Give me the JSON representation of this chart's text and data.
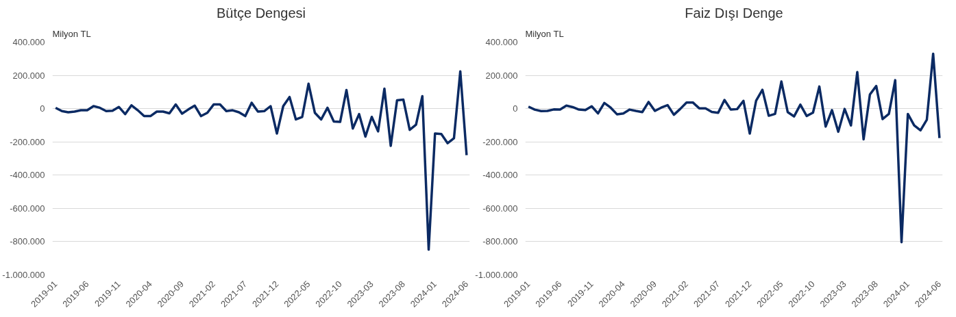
{
  "chart_data": [
    {
      "type": "line",
      "title": "Bütçe Dengesi",
      "ylabel": "Milyon TL",
      "categories": [
        "2019-01",
        null,
        null,
        null,
        null,
        "2019-06",
        null,
        null,
        null,
        null,
        "2019-11",
        null,
        null,
        null,
        null,
        "2020-04",
        null,
        null,
        null,
        null,
        "2020-09",
        null,
        null,
        null,
        null,
        "2021-02",
        null,
        null,
        null,
        null,
        "2021-07",
        null,
        null,
        null,
        null,
        "2021-12",
        null,
        null,
        null,
        null,
        "2022-05",
        null,
        null,
        null,
        null,
        "2022-10",
        null,
        null,
        null,
        null,
        "2023-03",
        null,
        null,
        null,
        null,
        "2023-08",
        null,
        null,
        null,
        null,
        "2024-01",
        null,
        null,
        null,
        null,
        "2024-06"
      ],
      "series": [
        {
          "color": "#0b2a63",
          "values": [
            5000,
            -15000,
            -22000,
            -18000,
            -10000,
            -10000,
            15000,
            5000,
            -15000,
            -13000,
            10000,
            -33000,
            20000,
            -10000,
            -45000,
            -45000,
            -18000,
            -18000,
            -28000,
            25000,
            -30000,
            -5000,
            18000,
            -45000,
            -25000,
            25000,
            25000,
            -15000,
            -10000,
            -22000,
            -45000,
            35000,
            -18000,
            -15000,
            15000,
            -150000,
            15000,
            70000,
            -65000,
            -50000,
            150000,
            -25000,
            -65000,
            5000,
            -78000,
            -80000,
            112000,
            -120000,
            -33000,
            -168000,
            -50000,
            -137000,
            120000,
            -224000,
            50000,
            54000,
            -128000,
            -97000,
            75000,
            -848000,
            -150000,
            -153000,
            -208000,
            -178000,
            224000,
            -280000
          ]
        }
      ],
      "ylim": [
        -1000000,
        400000
      ],
      "yticks": [
        {
          "value": -1000000,
          "label": "-1.000.000"
        },
        {
          "value": -800000,
          "label": "-800.000"
        },
        {
          "value": -600000,
          "label": "-600.000"
        },
        {
          "value": -400000,
          "label": "-400.000"
        },
        {
          "value": -200000,
          "label": "-200.000"
        },
        0,
        {
          "value": 200000,
          "label": "200.000"
        },
        {
          "value": 400000,
          "label": "400.000"
        }
      ],
      "grid": "y",
      "marker": "none",
      "line_style": "solid"
    },
    {
      "type": "line",
      "title": "Faiz Dışı Denge",
      "ylabel": "Milyon TL",
      "categories": [
        "2019-01",
        null,
        null,
        null,
        null,
        "2019-06",
        null,
        null,
        null,
        null,
        "2019-11",
        null,
        null,
        null,
        null,
        "2020-04",
        null,
        null,
        null,
        null,
        "2020-09",
        null,
        null,
        null,
        null,
        "2021-02",
        null,
        null,
        null,
        null,
        "2021-07",
        null,
        null,
        null,
        null,
        "2021-12",
        null,
        null,
        null,
        null,
        "2022-05",
        null,
        null,
        null,
        null,
        "2022-10",
        null,
        null,
        null,
        null,
        "2023-03",
        null,
        null,
        null,
        null,
        "2023-08",
        null,
        null,
        null,
        null,
        "2024-01",
        null,
        null,
        null,
        null,
        "2024-06"
      ],
      "series": [
        {
          "color": "#0b2a63",
          "values": [
            12000,
            -6000,
            -15000,
            -14000,
            -5000,
            -6000,
            18000,
            9000,
            -6000,
            -9000,
            14000,
            -29000,
            34000,
            6000,
            -34000,
            -29000,
            -6000,
            -14000,
            -21000,
            40000,
            -14000,
            6000,
            21000,
            -37000,
            -2000,
            37000,
            37000,
            2000,
            2000,
            -20000,
            -25000,
            52000,
            -6000,
            -3000,
            47000,
            -150000,
            47000,
            113000,
            -43000,
            -32000,
            163000,
            -21000,
            -47000,
            24000,
            -44000,
            -24000,
            133000,
            -108000,
            -9000,
            -139000,
            -2000,
            -101000,
            220000,
            -185000,
            85000,
            136000,
            -63000,
            -32000,
            171000,
            -803000,
            -32000,
            -101000,
            -131000,
            -67000,
            330000,
            -177000
          ]
        }
      ],
      "ylim": [
        -1000000,
        400000
      ],
      "yticks": [
        {
          "value": -1000000,
          "label": "-1.000.000"
        },
        {
          "value": -800000,
          "label": "-800.000"
        },
        {
          "value": -600000,
          "label": "-600.000"
        },
        {
          "value": -400000,
          "label": "-400.000"
        },
        {
          "value": -200000,
          "label": "-200.000"
        },
        0,
        {
          "value": 200000,
          "label": "200.000"
        },
        {
          "value": 400000,
          "label": "400.000"
        }
      ],
      "grid": "y",
      "marker": "none",
      "line_style": "solid"
    }
  ]
}
